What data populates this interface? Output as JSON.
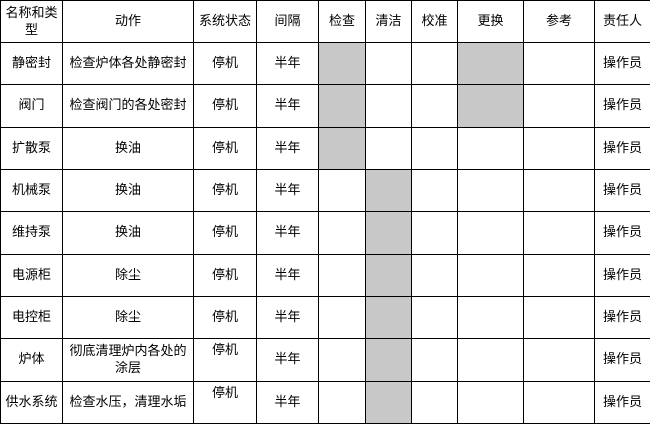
{
  "headers": [
    "名称和类型",
    "动作",
    "系统状态",
    "间隔",
    "检查",
    "清洁",
    "校准",
    "更换",
    "参考",
    "责任人"
  ],
  "shade_color": "#c8c8c8",
  "rows": [
    {
      "name": "静密封",
      "action": "检查炉体各处静密封",
      "state": "停机",
      "interval": "半年",
      "shaded": [
        "检查",
        "更换"
      ],
      "owner": "操作员"
    },
    {
      "name": "阀门",
      "action": "检查阀门的各处密封",
      "state": "停机",
      "interval": "半年",
      "shaded": [
        "检查",
        "更换"
      ],
      "owner": "操作员"
    },
    {
      "name": "扩散泵",
      "action": "换油",
      "state": "停机",
      "interval": "半年",
      "shaded": [
        "检查"
      ],
      "owner": "操作员"
    },
    {
      "name": "机械泵",
      "action": "换油",
      "state": "停机",
      "interval": "半年",
      "shaded": [
        "清洁"
      ],
      "owner": "操作员"
    },
    {
      "name": "维持泵",
      "action": "换油",
      "state": "停机",
      "interval": "半年",
      "shaded": [
        "清洁"
      ],
      "owner": "操作员"
    },
    {
      "name": "电源柜",
      "action": "除尘",
      "state": "停机",
      "interval": "半年",
      "shaded": [
        "清洁"
      ],
      "owner": "操作员"
    },
    {
      "name": "电控柜",
      "action": "除尘",
      "state": "停机",
      "interval": "半年",
      "shaded": [
        "清洁"
      ],
      "owner": "操作员"
    },
    {
      "name": "炉体",
      "action": "彻底清理炉内各处的涂层",
      "state": "停机",
      "interval": "半年",
      "shaded": [
        "清洁"
      ],
      "owner": "操作员",
      "state_top": true
    },
    {
      "name": "供水系统",
      "action": "检查水压，清理水垢",
      "state": "停机",
      "interval": "半年",
      "shaded": [
        "清洁"
      ],
      "owner": "操作员",
      "state_top": true
    }
  ]
}
